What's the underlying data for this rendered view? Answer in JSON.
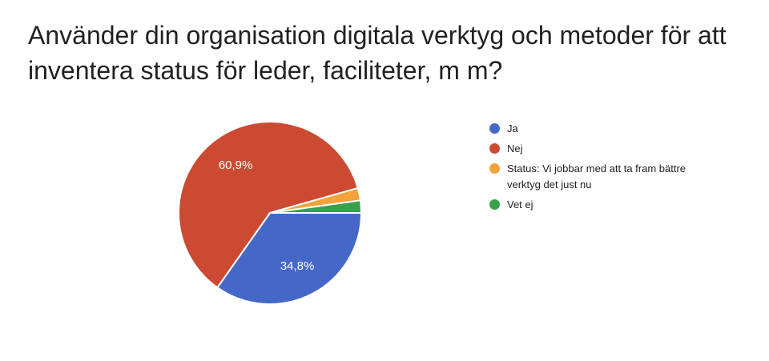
{
  "page": {
    "background_color": "#ffffff"
  },
  "title": {
    "line1": "Använder din organisation digitala verktyg och metoder för att",
    "line2": "inventera status för leder, faciliteter, m m?",
    "full": "Använder din organisation digitala verktyg och metoder för att inventera status för leder, faciliteter, m m?"
  },
  "chart_data": {
    "type": "pie",
    "title": "Använder din organisation digitala verktyg och metoder för att inventera status för leder, faciliteter, m m?",
    "legend_position": "right",
    "start_angle_deg": 90,
    "direction": "clockwise",
    "slice_border_color": "#ffffff",
    "label_color": "#ffffff",
    "min_pct_for_label": 5,
    "slices": [
      {
        "label": "Ja",
        "value": 34.8,
        "pct_label": "34,8%",
        "color": "#4568C8"
      },
      {
        "label": "Nej",
        "value": 60.9,
        "pct_label": "60,9%",
        "color": "#CB4A31"
      },
      {
        "label": "Status: Vi jobbar med att ta fram bättre verktyg det just nu",
        "value": 2.2,
        "pct_label": "",
        "color": "#F2A33C"
      },
      {
        "label": "Vet ej",
        "value": 2.2,
        "pct_label": "",
        "color": "#38A04A"
      }
    ]
  }
}
